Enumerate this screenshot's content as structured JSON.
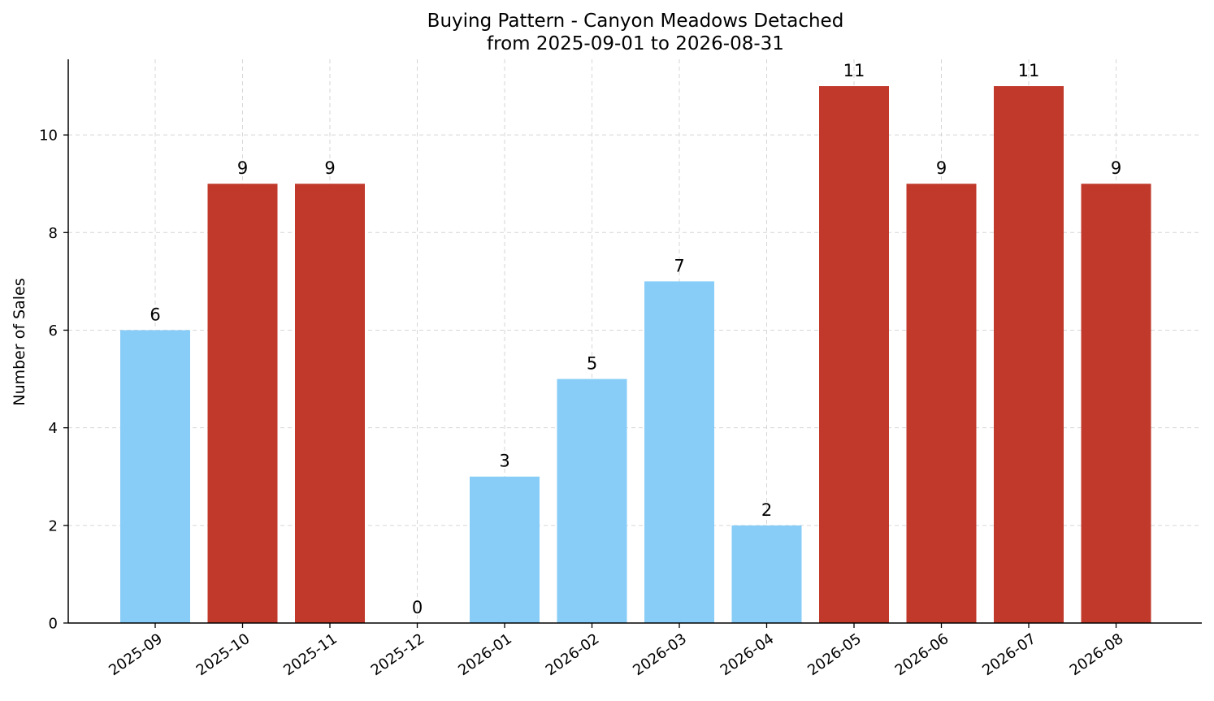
{
  "chart_data": {
    "type": "bar",
    "title": "Buying Pattern - Canyon Meadows Detached",
    "subtitle": "from 2025-09-01 to 2026-08-31",
    "xlabel": "",
    "ylabel": "Number of Sales",
    "categories": [
      "2025-09",
      "2025-10",
      "2025-11",
      "2025-12",
      "2026-01",
      "2026-02",
      "2026-03",
      "2026-04",
      "2026-05",
      "2026-06",
      "2026-07",
      "2026-08"
    ],
    "values": [
      6,
      9,
      9,
      0,
      3,
      5,
      7,
      2,
      11,
      9,
      11,
      9
    ],
    "data_labels": [
      "6",
      "9",
      "9",
      "0",
      "3",
      "5",
      "7",
      "2",
      "11",
      "9",
      "11",
      "9"
    ],
    "bar_colors": [
      "#87cdf7",
      "#c0392b",
      "#c0392b",
      "#87cdf7",
      "#87cdf7",
      "#87cdf7",
      "#87cdf7",
      "#87cdf7",
      "#c0392b",
      "#c0392b",
      "#c0392b",
      "#c0392b"
    ],
    "ylim": [
      0,
      11.55
    ],
    "yticks": [
      "0",
      "2",
      "4",
      "6",
      "8",
      "10"
    ],
    "grid": true,
    "legend": "none"
  }
}
